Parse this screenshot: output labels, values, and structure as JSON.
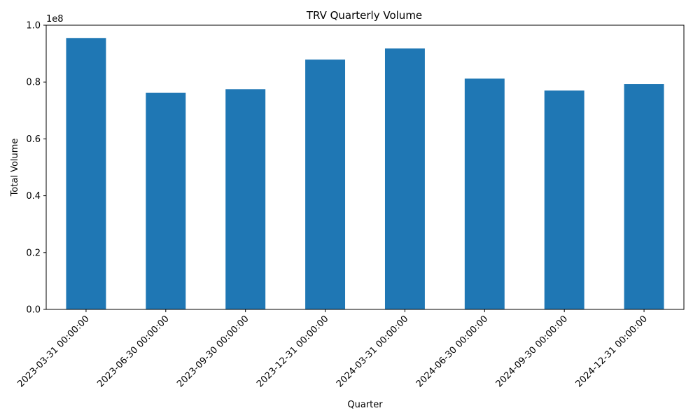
{
  "chart_data": {
    "type": "bar",
    "title": "TRV Quarterly Volume",
    "xlabel": "Quarter",
    "ylabel": "Total Volume",
    "offset_label": "1e8",
    "categories": [
      "2023-03-31 00:00:00",
      "2023-06-30 00:00:00",
      "2023-09-30 00:00:00",
      "2023-12-31 00:00:00",
      "2024-03-31 00:00:00",
      "2024-06-30 00:00:00",
      "2024-09-30 00:00:00",
      "2024-12-31 00:00:00"
    ],
    "values": [
      95500000,
      76200000,
      77500000,
      87900000,
      91800000,
      81200000,
      77000000,
      79300000
    ],
    "ylim": [
      0,
      100000000
    ],
    "yticks": [
      0,
      20000000,
      40000000,
      60000000,
      80000000,
      100000000
    ],
    "ytick_labels": [
      "0.0",
      "0.2",
      "0.4",
      "0.6",
      "0.8",
      "1.0"
    ],
    "bar_color": "#1f77b4",
    "grid": false,
    "legend": false
  }
}
